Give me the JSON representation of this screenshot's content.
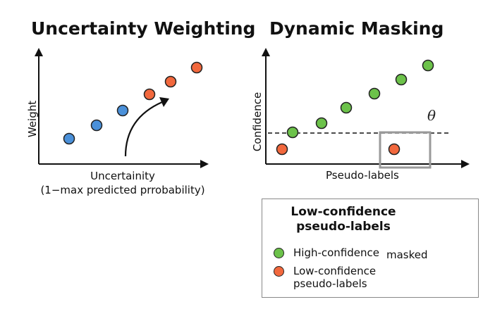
{
  "left_panel": {
    "title": "Uncertainty Weighting",
    "y_axis_label": "Weight",
    "x_axis_label_line1": "Uncertainity",
    "x_axis_label_line2": "(1−max predicted prrobability)"
  },
  "right_panel": {
    "title": "Dynamic Masking",
    "y_axis_label": "Confidence",
    "x_axis_label": "Pseudo-labels",
    "threshold_symbol": "θ"
  },
  "legend": {
    "title_line1": "Low-confidence",
    "title_line2": "pseudo-labels",
    "high_label": "High-confidence",
    "masked_label": "masked",
    "low_label_line1": "Low-confidence",
    "low_label_line2": "pseudo-labels"
  },
  "colors": {
    "blue": "#4a90d9",
    "orange": "#f2683d",
    "green": "#6cc24a",
    "mask_box": "#9a9a9a"
  }
}
